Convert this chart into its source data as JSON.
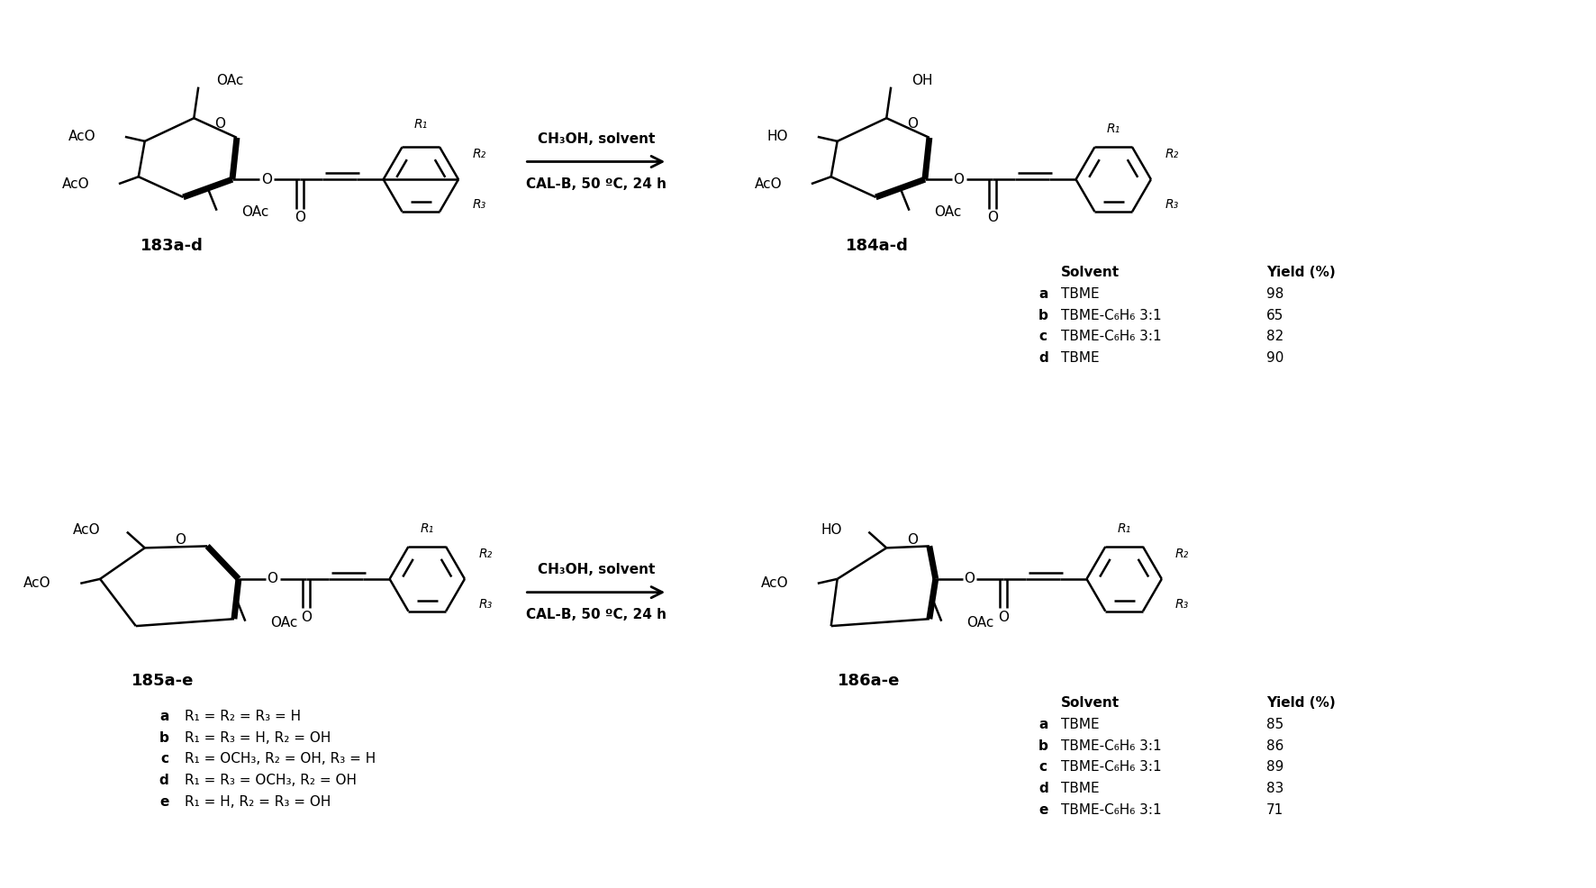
{
  "background_color": "#ffffff",
  "fig_width": 17.72,
  "fig_height": 9.86,
  "reaction1": {
    "reactant_label": "183a-d",
    "product_label": "184a-d",
    "arrow_text1": "CH₃OH, solvent",
    "arrow_text2": "CAL-B, 50 ºC, 24 h",
    "table_header": [
      "Solvent",
      "Yield (%)"
    ],
    "table_rows": [
      [
        "a",
        "TBME",
        "98"
      ],
      [
        "b",
        "TBME-C₆H₆ 3:1",
        "65"
      ],
      [
        "c",
        "TBME-C₆H₆ 3:1",
        "82"
      ],
      [
        "d",
        "TBME",
        "90"
      ]
    ]
  },
  "reaction2": {
    "reactant_label": "185a-e",
    "product_label": "186a-e",
    "arrow_text1": "CH₃OH, solvent",
    "arrow_text2": "CAL-B, 50 ºC, 24 h",
    "rgroup_rows": [
      [
        "a",
        "R₁ = R₂ = R₃ = H"
      ],
      [
        "b",
        "R₁ = R₃ = H, R₂ = OH"
      ],
      [
        "c",
        "R₁ = OCH₃, R₂ = OH, R₃ = H"
      ],
      [
        "d",
        "R₁ = R₃ = OCH₃, R₂ = OH"
      ],
      [
        "e",
        "R₁ = H, R₂ = R₃ = OH"
      ]
    ],
    "table_header": [
      "Solvent",
      "Yield (%)"
    ],
    "table_rows": [
      [
        "a",
        "TBME",
        "85"
      ],
      [
        "b",
        "TBME-C₆H₆ 3:1",
        "86"
      ],
      [
        "c",
        "TBME-C₆H₆ 3:1",
        "89"
      ],
      [
        "d",
        "TBME",
        "83"
      ],
      [
        "e",
        "TBME-C₆H₆ 3:1",
        "71"
      ]
    ]
  }
}
